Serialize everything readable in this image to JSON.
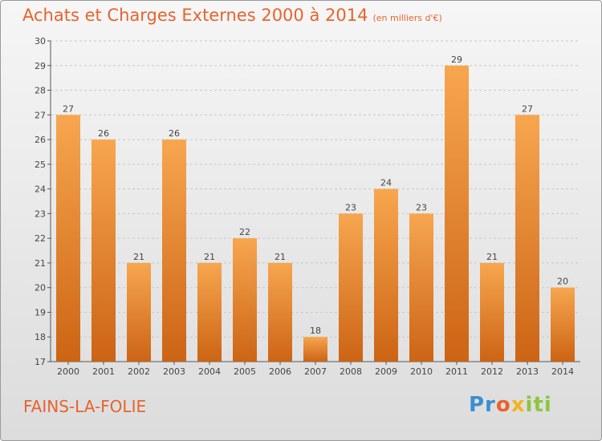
{
  "title": "Achats et Charges Externes 2000 à 2014",
  "unit": "(en milliers d'€)",
  "city": "FAINS-LA-FOLIE",
  "brand": "Proxiti",
  "colors": {
    "bar_light": "#f7a64f",
    "bar_dark": "#cc6414",
    "title": "#e8632c"
  },
  "chart_data": {
    "type": "bar",
    "title": "Achats et Charges Externes 2000 à 2014",
    "categories": [
      "2000",
      "2001",
      "2002",
      "2003",
      "2004",
      "2005",
      "2006",
      "2007",
      "2008",
      "2009",
      "2010",
      "2011",
      "2012",
      "2013",
      "2014"
    ],
    "values": [
      27,
      26,
      21,
      26,
      21,
      22,
      21,
      18,
      23,
      24,
      23,
      29,
      21,
      27,
      20
    ],
    "ylim": [
      17,
      30
    ],
    "yticks": [
      17,
      18,
      19,
      20,
      21,
      22,
      23,
      24,
      25,
      26,
      27,
      28,
      29,
      30
    ],
    "grid": true
  }
}
